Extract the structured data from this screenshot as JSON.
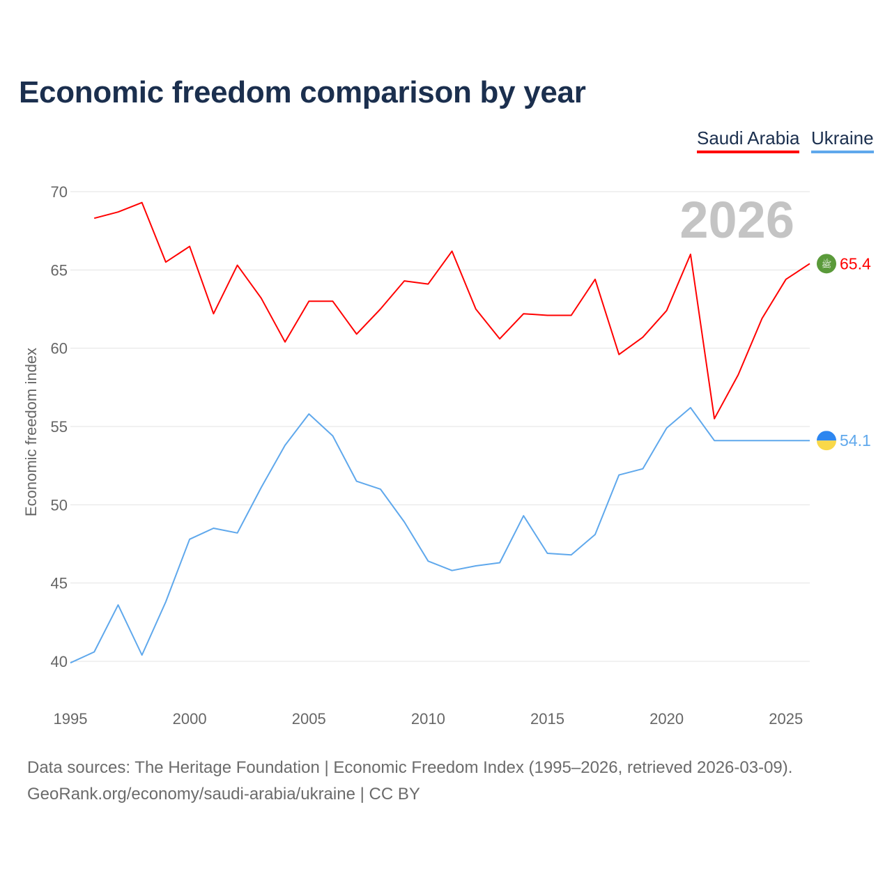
{
  "chart_data": {
    "type": "line",
    "title": "Economic freedom comparison by year",
    "xlabel": "",
    "ylabel": "Economic freedom index",
    "xlim": [
      1995,
      2026
    ],
    "ylim": [
      40,
      70
    ],
    "yticks": [
      40,
      45,
      50,
      55,
      60,
      65,
      70
    ],
    "xticks": [
      1995,
      2000,
      2005,
      2010,
      2015,
      2020,
      2025
    ],
    "grid": true,
    "legend_position": "top-right",
    "year_label": "2026",
    "series": [
      {
        "name": "Saudi Arabia",
        "color": "#ff0000",
        "end_label": "65.4",
        "icon": "saudi-arabia-flag-icon",
        "x": [
          1996,
          1997,
          1998,
          1999,
          2000,
          2001,
          2002,
          2003,
          2004,
          2005,
          2006,
          2007,
          2008,
          2009,
          2010,
          2011,
          2012,
          2013,
          2014,
          2015,
          2016,
          2017,
          2018,
          2019,
          2020,
          2021,
          2022,
          2023,
          2024,
          2025,
          2026
        ],
        "values": [
          68.3,
          68.7,
          69.3,
          65.5,
          66.5,
          62.2,
          65.3,
          63.2,
          60.4,
          63.0,
          63.0,
          60.9,
          62.5,
          64.3,
          64.1,
          66.2,
          62.5,
          60.6,
          62.2,
          62.1,
          62.1,
          64.4,
          59.6,
          60.7,
          62.4,
          66.0,
          55.5,
          58.3,
          61.9,
          64.4,
          65.4
        ]
      },
      {
        "name": "Ukraine",
        "color": "#5fa8ec",
        "end_label": "54.1",
        "icon": "ukraine-flag-icon",
        "x": [
          1995,
          1996,
          1997,
          1998,
          1999,
          2000,
          2001,
          2002,
          2003,
          2004,
          2005,
          2006,
          2007,
          2008,
          2009,
          2010,
          2011,
          2012,
          2013,
          2014,
          2015,
          2016,
          2017,
          2018,
          2019,
          2020,
          2021,
          2022,
          2023,
          2024,
          2025,
          2026
        ],
        "values": [
          39.9,
          40.6,
          43.6,
          40.4,
          43.8,
          47.8,
          48.5,
          48.2,
          51.1,
          53.8,
          55.8,
          54.4,
          51.5,
          51.0,
          48.9,
          46.4,
          45.8,
          46.1,
          46.3,
          49.3,
          46.9,
          46.8,
          48.1,
          51.9,
          52.3,
          54.9,
          56.2,
          54.1,
          54.1,
          54.1,
          54.1,
          54.1
        ]
      }
    ]
  },
  "footer": {
    "line1": "Data sources: The Heritage Foundation | Economic Freedom Index (1995–2026, retrieved 2026-03-09).",
    "line2": "GeoRank.org/economy/saudi-arabia/ukraine | CC BY"
  }
}
